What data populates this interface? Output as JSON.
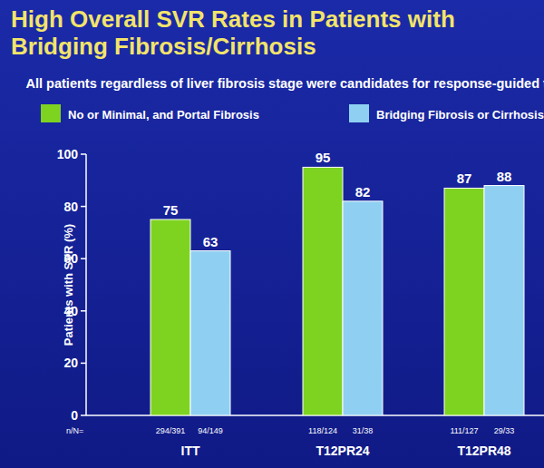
{
  "chart_data": {
    "type": "bar",
    "title": "High Overall SVR Rates in Patients with Bridging Fibrosis/Cirrhosis",
    "subtitle": "All patients regardless of liver fibrosis stage were candidates for response-guided therapy",
    "y_label": "Patients with SVR (%)",
    "categories": [
      "ITT",
      "T12PR24",
      "T12PR48"
    ],
    "count_prefix": "n/N=",
    "series": [
      {
        "name": "No or Minimal, and Portal Fibrosis",
        "color": "#7ed321",
        "values": [
          75,
          95,
          87
        ],
        "counts": [
          "294/391",
          "118/124",
          "111/127"
        ]
      },
      {
        "name": "Bridging Fibrosis or Cirrhosis",
        "color": "#8fd0f2",
        "values": [
          63,
          82,
          88
        ],
        "counts": [
          "94/149",
          "31/38",
          "29/33"
        ]
      }
    ],
    "ylim": [
      0,
      100
    ],
    "yticks": [
      0,
      20,
      40,
      60,
      80,
      100
    ],
    "grid": false,
    "data_labels": true,
    "legend": "top"
  }
}
